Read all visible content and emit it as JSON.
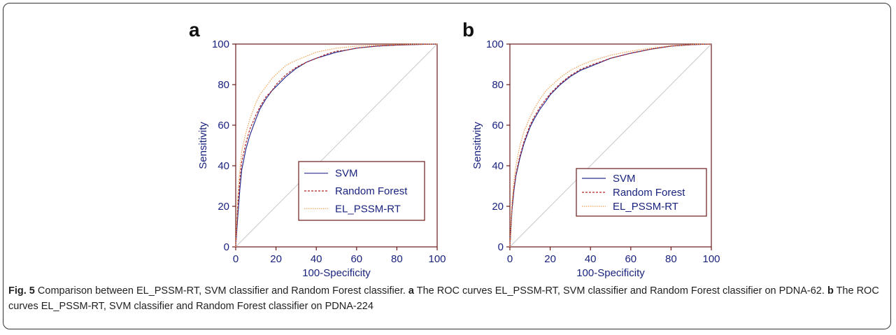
{
  "figure": {
    "caption_label": "Fig. 5",
    "caption_text": " Comparison between EL_PSSM-RT, SVM classifier and Random Forest classifier. ",
    "caption_a_label": "a",
    "caption_a_text": " The ROC curves EL_PSSM-RT, SVM classifier and Random Forest classifier on PDNA-62. ",
    "caption_b_label": "b",
    "caption_b_text": " The ROC curves EL_PSSM-RT, SVM classifier and Random Forest classifier on PDNA-224"
  },
  "colors": {
    "axis": "#6b1a1a",
    "tick_text": "#1a237e",
    "diagonal": "#c8c8c8",
    "legend_border": "#6b1a1a"
  },
  "chart_data": [
    {
      "panel": "a",
      "type": "line",
      "xlabel": "100-Specificity",
      "ylabel": "Sensitivity",
      "xlim": [
        0,
        100
      ],
      "ylim": [
        0,
        100
      ],
      "xticks": [
        0,
        20,
        40,
        60,
        80,
        100
      ],
      "yticks": [
        0,
        20,
        40,
        60,
        80,
        100
      ],
      "grid": false,
      "legend_position": "bottom-right",
      "diagonal": true,
      "series": [
        {
          "name": "SVM",
          "color": "#2b2f8f",
          "dash": "solid",
          "x": [
            0,
            1,
            2,
            3,
            5,
            7,
            10,
            12,
            15,
            18,
            20,
            25,
            30,
            35,
            40,
            45,
            50,
            55,
            60,
            70,
            80,
            90,
            100
          ],
          "y": [
            0,
            15,
            28,
            38,
            48,
            55,
            63,
            68,
            73,
            77,
            79,
            84,
            88,
            91,
            93,
            94.5,
            96,
            97,
            98,
            99,
            99.5,
            99.8,
            100
          ]
        },
        {
          "name": "Random Forest",
          "color": "#b22222",
          "dash": "3,2",
          "x": [
            0,
            1,
            2,
            3,
            5,
            7,
            10,
            12,
            15,
            18,
            20,
            25,
            30,
            35,
            40,
            45,
            50,
            55,
            60,
            70,
            80,
            90,
            100
          ],
          "y": [
            0,
            20,
            33,
            42,
            51,
            58,
            65,
            69,
            74,
            77,
            80,
            85,
            88.5,
            91,
            93,
            95,
            96.5,
            97,
            98,
            99,
            99.5,
            99.8,
            100
          ]
        },
        {
          "name": "EL_PSSM-RT",
          "color": "#f0a050",
          "dash": "1.5,1.5",
          "x": [
            0,
            1,
            2,
            3,
            5,
            7,
            10,
            12,
            15,
            18,
            20,
            25,
            30,
            35,
            40,
            45,
            50,
            55,
            60,
            70,
            80,
            90,
            100
          ],
          "y": [
            0,
            25,
            38,
            47,
            56,
            63,
            71,
            75,
            79,
            83,
            85,
            89.5,
            92,
            94,
            96,
            97,
            98,
            98.5,
            99,
            99.5,
            99.8,
            99.9,
            100
          ]
        }
      ]
    },
    {
      "panel": "b",
      "type": "line",
      "xlabel": "100-Specificity",
      "ylabel": "Sensitivity",
      "xlim": [
        0,
        100
      ],
      "ylim": [
        0,
        100
      ],
      "xticks": [
        0,
        20,
        40,
        60,
        80,
        100
      ],
      "yticks": [
        0,
        20,
        40,
        60,
        80,
        100
      ],
      "grid": false,
      "legend_position": "bottom-right",
      "diagonal": true,
      "series": [
        {
          "name": "SVM",
          "color": "#2b2f8f",
          "dash": "solid",
          "x": [
            0,
            1,
            2,
            3,
            5,
            7,
            10,
            12,
            15,
            18,
            20,
            25,
            30,
            35,
            40,
            50,
            60,
            70,
            80,
            90,
            100
          ],
          "y": [
            0,
            18,
            28,
            35,
            44,
            51,
            59,
            63,
            68,
            72,
            75,
            80,
            84,
            87,
            89,
            93,
            95.5,
            97.5,
            99,
            99.7,
            100
          ]
        },
        {
          "name": "Random Forest",
          "color": "#b22222",
          "dash": "3,2",
          "x": [
            0,
            1,
            2,
            3,
            5,
            7,
            10,
            12,
            15,
            18,
            20,
            25,
            30,
            35,
            40,
            50,
            60,
            70,
            80,
            90,
            100
          ],
          "y": [
            0,
            19,
            29,
            36,
            45,
            52,
            60,
            64,
            69,
            73,
            75.5,
            80.5,
            84.5,
            87.5,
            89.5,
            93,
            95.5,
            97.5,
            99,
            99.7,
            100
          ]
        },
        {
          "name": "EL_PSSM-RT",
          "color": "#f0a050",
          "dash": "1.5,1.5",
          "x": [
            0,
            1,
            2,
            3,
            5,
            7,
            10,
            12,
            15,
            18,
            20,
            25,
            30,
            35,
            40,
            50,
            60,
            70,
            80,
            90,
            100
          ],
          "y": [
            0,
            22,
            33,
            40,
            50,
            57,
            64,
            68,
            73,
            77,
            79,
            83.5,
            87,
            89.5,
            91.5,
            94.5,
            96.5,
            98,
            99.2,
            99.8,
            100
          ]
        }
      ]
    }
  ]
}
